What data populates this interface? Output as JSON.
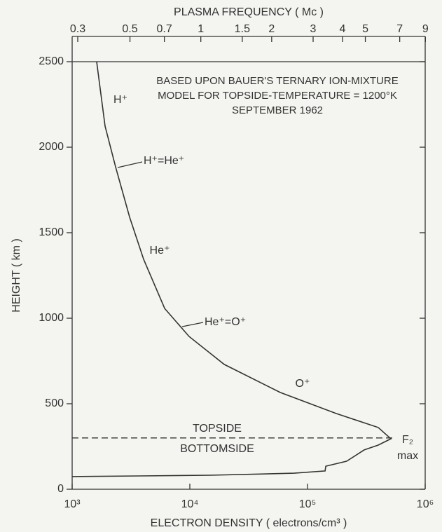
{
  "chart_data": {
    "type": "line",
    "title_lines": [
      "BASED UPON BAUER'S TERNARY ION-MIXTURE",
      "MODEL FOR TOPSIDE-TEMPERATURE = 1200°K",
      "SEPTEMBER 1962"
    ],
    "x_label": "ELECTRON DENSITY ( electrons/cm³ )",
    "y_label": "HEIGHT ( km )",
    "x2_label": "PLASMA FREQUENCY ( Mc )",
    "x_log": true,
    "x2_log": true,
    "xlim": [
      1000,
      1000000
    ],
    "xticks": [
      {
        "value": 1000,
        "label": "10³"
      },
      {
        "value": 10000,
        "label": "10⁴"
      },
      {
        "value": 100000,
        "label": "10⁵"
      },
      {
        "value": 1000000,
        "label": "10⁶"
      }
    ],
    "x2lim": [
      0.284,
      8.98
    ],
    "x2ticks": [
      0.3,
      0.5,
      0.7,
      1,
      1.5,
      2,
      3,
      4,
      5,
      7,
      9
    ],
    "ylim": [
      0,
      2500
    ],
    "yticks": [
      0,
      500,
      1000,
      1500,
      2000,
      2500
    ],
    "color": "#333333",
    "series": [
      {
        "x": [
          1615,
          1905,
          2340,
          3080,
          4050,
          6110,
          9860,
          19600,
          58600,
          175000,
          399000,
          511000,
          399000,
          303000,
          215000,
          143000,
          141000,
          77000,
          14900,
          3780,
          1000
        ],
        "values": [
          2500,
          2123,
          1885,
          1590,
          1344,
          1057,
          893,
          730,
          566,
          443,
          361,
          295,
          258,
          230,
          164,
          135,
          107,
          94,
          82,
          78,
          74
        ]
      }
    ],
    "reference_line": {
      "y": 300
    },
    "annotations": [
      "H⁺",
      "H⁺=He⁺",
      "He⁺",
      "He⁺=O⁺",
      "O⁺",
      "TOPSIDE",
      "BOTTOMSIDE",
      "F₂",
      "max"
    ]
  }
}
